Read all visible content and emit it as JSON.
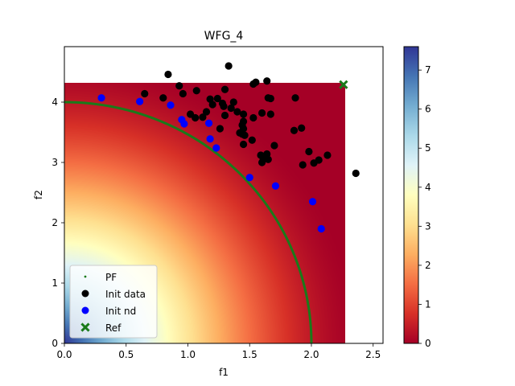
{
  "chart_data": {
    "type": "scatter",
    "title": "WFG_4",
    "xlabel": "f1",
    "ylabel": "f2",
    "xlim": [
      0,
      2.58
    ],
    "ylim": [
      0,
      4.92
    ],
    "xticks": [
      "0.0",
      "0.5",
      "1.0",
      "1.5",
      "2.0",
      "2.5"
    ],
    "yticks": [
      "0",
      "1",
      "2",
      "3",
      "4"
    ],
    "heatmap": {
      "x_extent": [
        0,
        2.26
      ],
      "y_extent": [
        0,
        4.3
      ],
      "colormap": "RdYlBu",
      "cmin": 0,
      "cmax": 7.6,
      "description_values": "value decreases from the origin outward"
    },
    "colorbar": {
      "ticks": [
        "0",
        "1",
        "2",
        "3",
        "4",
        "5",
        "6",
        "7"
      ],
      "range": [
        0,
        7.6
      ]
    },
    "legend": {
      "placement": "lower-left",
      "entries": [
        {
          "label": "PF",
          "color": "#1a7a1a",
          "marker": "dot"
        },
        {
          "label": "Init data",
          "color": "#000000",
          "marker": "circle"
        },
        {
          "label": "Init nd",
          "color": "#0000ff",
          "marker": "circle"
        },
        {
          "label": "Ref",
          "color": "#1a7a1a",
          "marker": "x"
        }
      ]
    },
    "series": [
      {
        "name": "PF",
        "color": "#1a7a1a",
        "shape": "quarter-ellipse",
        "a": 2.0,
        "b": 4.0
      },
      {
        "name": "Init data",
        "color": "#000000",
        "points": [
          [
            0.84,
            4.46
          ],
          [
            1.33,
            4.6
          ],
          [
            0.65,
            4.14
          ],
          [
            0.8,
            4.07
          ],
          [
            0.93,
            4.27
          ],
          [
            0.96,
            4.14
          ],
          [
            1.07,
            4.19
          ],
          [
            1.18,
            4.05
          ],
          [
            1.24,
            4.06
          ],
          [
            1.3,
            4.21
          ],
          [
            1.37,
            4.0
          ],
          [
            1.53,
            4.3
          ],
          [
            1.55,
            4.33
          ],
          [
            1.64,
            4.35
          ],
          [
            1.65,
            4.07
          ],
          [
            1.67,
            4.06
          ],
          [
            1.87,
            4.07
          ],
          [
            1.02,
            3.8
          ],
          [
            1.06,
            3.74
          ],
          [
            1.12,
            3.75
          ],
          [
            1.15,
            3.84
          ],
          [
            1.2,
            3.96
          ],
          [
            1.28,
            3.98
          ],
          [
            1.29,
            3.93
          ],
          [
            1.35,
            3.9
          ],
          [
            1.4,
            3.84
          ],
          [
            1.45,
            3.8
          ],
          [
            1.45,
            3.68
          ],
          [
            1.44,
            3.62
          ],
          [
            1.45,
            3.56
          ],
          [
            1.53,
            3.74
          ],
          [
            1.6,
            3.82
          ],
          [
            1.67,
            3.8
          ],
          [
            1.3,
            3.78
          ],
          [
            1.26,
            3.56
          ],
          [
            1.44,
            3.47
          ],
          [
            1.46,
            3.45
          ],
          [
            1.42,
            3.49
          ],
          [
            1.52,
            3.37
          ],
          [
            1.45,
            3.3
          ],
          [
            1.59,
            3.12
          ],
          [
            1.61,
            3.07
          ],
          [
            1.6,
            3.0
          ],
          [
            1.63,
            3.11
          ],
          [
            1.64,
            3.14
          ],
          [
            1.65,
            3.05
          ],
          [
            1.7,
            3.28
          ],
          [
            1.86,
            3.53
          ],
          [
            1.92,
            3.57
          ],
          [
            1.98,
            3.18
          ],
          [
            1.93,
            2.96
          ],
          [
            2.02,
            2.99
          ],
          [
            2.06,
            3.04
          ],
          [
            2.13,
            3.12
          ],
          [
            2.36,
            2.82
          ]
        ]
      },
      {
        "name": "Init nd",
        "color": "#0000ff",
        "points": [
          [
            0.3,
            4.07
          ],
          [
            0.61,
            4.01
          ],
          [
            0.86,
            3.95
          ],
          [
            0.95,
            3.71
          ],
          [
            0.97,
            3.64
          ],
          [
            1.17,
            3.65
          ],
          [
            1.18,
            3.39
          ],
          [
            1.23,
            3.24
          ],
          [
            1.5,
            2.75
          ],
          [
            1.71,
            2.61
          ],
          [
            2.01,
            2.35
          ],
          [
            2.08,
            1.9
          ]
        ]
      },
      {
        "name": "Ref",
        "color": "#1a7a1a",
        "points": [
          [
            2.26,
            4.29
          ]
        ]
      }
    ]
  }
}
